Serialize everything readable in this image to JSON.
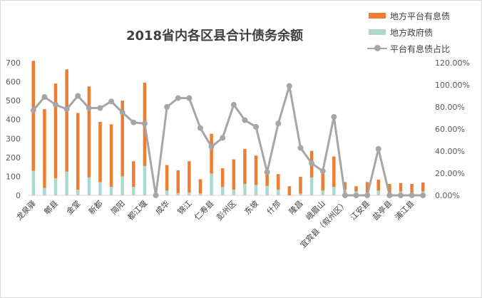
{
  "chart_data": {
    "type": "bar",
    "title": "2018省内各区县合计债务余额",
    "categories": [
      "龙泉驿",
      "",
      "郫县",
      "",
      "金堂",
      "",
      "新都",
      "",
      "简阳",
      "",
      "都江堰",
      "",
      "成华",
      "",
      "锦江",
      "",
      "仁寿县",
      "",
      "彭州区",
      "",
      "东坡",
      "",
      "什邡",
      "",
      "隆昌",
      "",
      "峨眉山",
      "",
      "宜宾县（叙州区）",
      "",
      "江安县",
      "",
      "盐亭县",
      "",
      "浦江县",
      ""
    ],
    "series": [
      {
        "name": "地方平台有息债",
        "stacked": true,
        "color": "#ed7d31",
        "values": [
          580,
          415,
          500,
          540,
          405,
          480,
          318,
          330,
          400,
          135,
          440,
          0,
          135,
          120,
          165,
          75,
          210,
          98,
          160,
          185,
          155,
          65,
          82,
          48,
          88,
          140,
          95,
          160,
          40,
          28,
          55,
          58,
          50,
          45,
          45,
          48
        ]
      },
      {
        "name": "地方政府债",
        "stacked": true,
        "color": "#a9d9cf",
        "values": [
          130,
          40,
          90,
          125,
          30,
          95,
          70,
          45,
          100,
          45,
          155,
          0,
          25,
          12,
          15,
          10,
          115,
          45,
          30,
          60,
          55,
          50,
          30,
          0,
          10,
          95,
          25,
          45,
          30,
          20,
          15,
          25,
          10,
          20,
          15,
          20
        ]
      },
      {
        "name": "平台有息债占比",
        "type": "line",
        "axis": "right",
        "color": "#a6a6a6",
        "values": [
          77,
          89,
          82,
          78,
          90,
          79,
          79,
          85,
          75,
          66,
          65,
          0,
          80,
          88,
          88,
          61,
          44,
          52,
          82,
          68,
          62,
          21,
          65,
          99,
          43,
          29,
          22,
          71,
          0,
          0,
          0,
          42,
          0,
          0,
          0,
          0
        ]
      }
    ],
    "y_left": {
      "min": 0,
      "max": 700,
      "ticks": [
        "0",
        "100",
        "200",
        "300",
        "400",
        "500",
        "600",
        "700"
      ]
    },
    "y_right": {
      "min": 0,
      "max": 120,
      "ticks": [
        "0.00%",
        "20.00%",
        "40.00%",
        "60.00%",
        "80.00%",
        "100.00%",
        "120.00%"
      ]
    },
    "legend": "top-right",
    "grid": false
  }
}
